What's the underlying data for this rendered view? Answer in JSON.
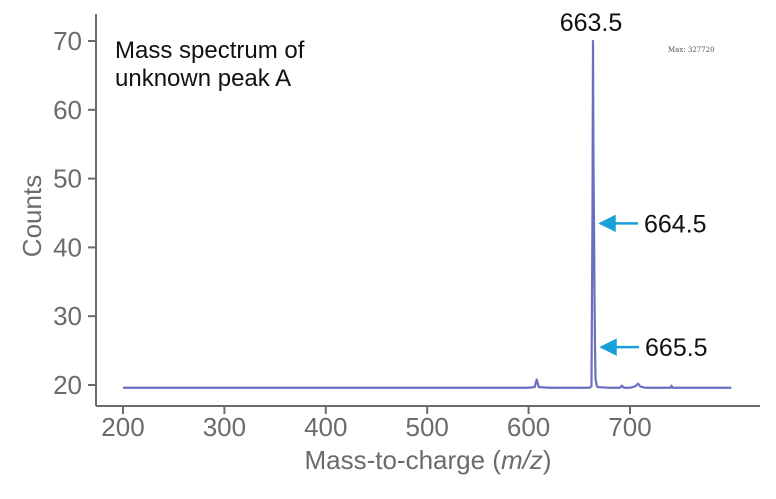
{
  "chart_data": {
    "type": "line",
    "title": "Mass spectrum of unknown peak A",
    "title_lines": [
      "Mass spectrum of",
      "unknown peak A"
    ],
    "xlabel_prefix": "Mass-to-charge (",
    "xlabel_italic": "m/z",
    "xlabel_suffix": ")",
    "ylabel": "Counts",
    "xlim": [
      170,
      800
    ],
    "ylim": [
      18,
      72
    ],
    "xticks": [
      200,
      300,
      400,
      500,
      600,
      700
    ],
    "yticks": [
      20,
      30,
      40,
      50,
      60,
      70
    ],
    "grid": false,
    "series": [
      {
        "name": "Mass spectrum of unknown peak A",
        "color": "#6b6fbf",
        "x": [
          200,
          300,
          400,
          500,
          600,
          606,
          608,
          610,
          620,
          640,
          660,
          662,
          663,
          663.5,
          664,
          664.5,
          665,
          665.5,
          666,
          667,
          668,
          680,
          690,
          692,
          694,
          700,
          705,
          708,
          710,
          715,
          740,
          741,
          742,
          770,
          800
        ],
        "y": [
          19.6,
          19.6,
          19.6,
          19.6,
          19.6,
          19.7,
          20.8,
          19.7,
          19.6,
          19.6,
          19.6,
          19.8,
          45,
          70,
          52,
          43.5,
          33,
          25.5,
          21,
          20,
          19.7,
          19.6,
          19.6,
          19.9,
          19.6,
          19.6,
          19.8,
          20.2,
          19.8,
          19.6,
          19.6,
          19.9,
          19.6,
          19.6,
          19.6
        ]
      }
    ],
    "annotations": [
      {
        "text": "663.5",
        "x": 663.5,
        "y": 70,
        "kind": "top-label"
      },
      {
        "text": "664.5",
        "x": 664.5,
        "y": 43.5,
        "kind": "arrow",
        "arrow_color": "#1aa0d8"
      },
      {
        "text": "665.5",
        "x": 665.5,
        "y": 25.5,
        "kind": "arrow",
        "arrow_color": "#1aa0d8"
      }
    ],
    "max_text": "Max: 327720"
  },
  "colors": {
    "line": "#6b6fbf",
    "arrow": "#1aa0d8",
    "axis": "#6b6b6b",
    "text": "#111111"
  }
}
